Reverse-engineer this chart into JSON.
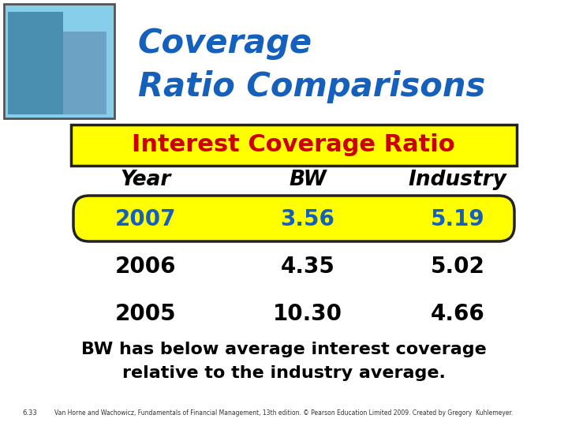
{
  "title_line1": "Coverage",
  "title_line2": "Ratio Comparisons",
  "title_color": "#1560BD",
  "header_label": "Interest Coverage Ratio",
  "header_bg": "#FFFF00",
  "header_text_color": "#CC0000",
  "col_headers": [
    "Year",
    "BW",
    "Industry"
  ],
  "col_header_color": "#000000",
  "rows": [
    {
      "year": "2007",
      "bw": "3.56",
      "industry": "5.19",
      "highlight": true
    },
    {
      "year": "2006",
      "bw": "4.35",
      "industry": "5.02",
      "highlight": false
    },
    {
      "year": "2005",
      "bw": "10.30",
      "industry": "4.66",
      "highlight": false
    }
  ],
  "highlight_bg": "#FFFF00",
  "highlight_text_color": "#1560BD",
  "normal_text_color": "#000000",
  "note_line1": "BW has below average interest coverage",
  "note_line2": "relative to the industry average.",
  "note_color": "#000000",
  "footer": "Van Horne and Wachowicz, Fundamentals of Financial Management, 13th edition. © Pearson Education Limited 2009. Created by Gregory  Kuhlemeyer.",
  "footer_label": "6.33",
  "bg_color": "#FFFFFF",
  "img_bg": "#88AACC"
}
